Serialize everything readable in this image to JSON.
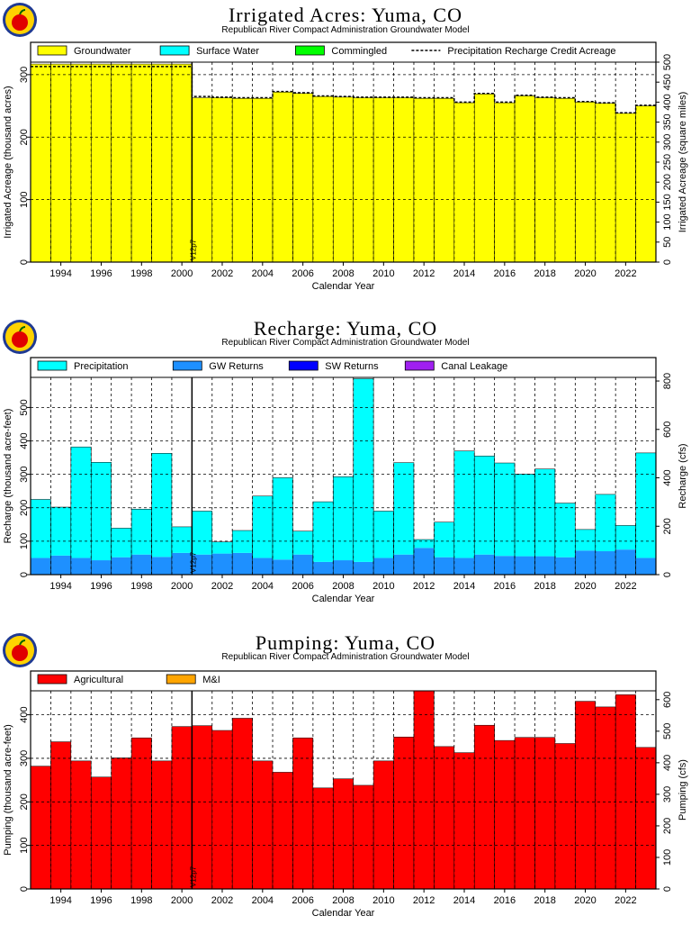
{
  "panels": [
    {
      "title": "Irrigated Acres: Yuma, CO",
      "subtitle": "Republican River Compact Administration Groundwater Model",
      "xlabel": "Calendar Year",
      "ylabel": "Irrigated Acreage (thousand acres)",
      "y2label": "Irrigated Acreage (square miles)",
      "marker_label": "V12p7"
    },
    {
      "title": "Recharge: Yuma, CO",
      "subtitle": "Republican River Compact Administration Groundwater Model",
      "xlabel": "Calendar Year",
      "ylabel": "Recharge (thousand acre-feet)",
      "y2label": "Recharge (cfs)",
      "marker_label": "V12p7"
    },
    {
      "title": "Pumping: Yuma, CO",
      "subtitle": "Republican River Compact Administration Groundwater Model",
      "xlabel": "Calendar Year",
      "ylabel": "Pumping (thousand acre-feet)",
      "y2label": "Pumping (cfs)",
      "marker_label": "V12p7"
    }
  ],
  "chart_data": [
    {
      "type": "bar",
      "stacked": true,
      "title": "Irrigated Acres: Yuma, CO",
      "subtitle": "Republican River Compact Administration Groundwater Model",
      "xlabel": "Calendar Year",
      "ylabel": "Irrigated Acreage (thousand acres)",
      "y2label": "Irrigated Acreage (square miles)",
      "x_start": 1993,
      "x_end": 2023,
      "xticks": [
        1994,
        1996,
        1998,
        2000,
        2002,
        2004,
        2006,
        2008,
        2010,
        2012,
        2014,
        2016,
        2018,
        2020,
        2022
      ],
      "ylim": [
        0,
        320
      ],
      "yticks": [
        0,
        100,
        200,
        300
      ],
      "y2lim": [
        0,
        500
      ],
      "y2ticks": [
        0,
        50,
        100,
        150,
        200,
        250,
        300,
        350,
        400,
        450,
        500
      ],
      "vline_year": 2000.5,
      "vline_label": "V12p7",
      "legend": [
        {
          "name": "Groundwater",
          "color": "#ffff00",
          "style": "box"
        },
        {
          "name": "Surface Water",
          "color": "#00ffff",
          "style": "box"
        },
        {
          "name": "Commingled",
          "color": "#00ff00",
          "style": "box"
        },
        {
          "name": "Precipitation Recharge Credit Acreage",
          "color": "#000000",
          "style": "dash"
        }
      ],
      "categories": [
        1993,
        1994,
        1995,
        1996,
        1997,
        1998,
        1999,
        2000,
        2001,
        2002,
        2003,
        2004,
        2005,
        2006,
        2007,
        2008,
        2009,
        2010,
        2011,
        2012,
        2013,
        2014,
        2015,
        2016,
        2017,
        2018,
        2019,
        2020,
        2021,
        2022,
        2023
      ],
      "series": [
        {
          "name": "Groundwater",
          "color": "#ffff00",
          "values": [
            317,
            317,
            317,
            317,
            317,
            317,
            317,
            317,
            263,
            263,
            262,
            262,
            272,
            270,
            265,
            264,
            263,
            263,
            263,
            262,
            262,
            255,
            269,
            255,
            266,
            263,
            262,
            256,
            254,
            238,
            250
          ]
        },
        {
          "name": "Surface Water",
          "color": "#00ffff",
          "values": [
            0,
            0,
            0,
            0,
            0,
            0,
            0,
            0,
            0,
            0,
            0,
            0,
            0,
            0,
            0,
            0,
            0,
            0,
            0,
            0,
            0,
            0,
            0,
            0,
            0,
            0,
            0,
            0,
            0,
            0,
            0
          ]
        },
        {
          "name": "Commingled",
          "color": "#00ff00",
          "values": [
            0,
            0,
            0,
            0,
            0,
            0,
            0,
            0,
            0,
            0,
            0,
            0,
            0,
            0,
            0,
            0,
            0,
            0,
            0,
            0,
            0,
            0,
            0,
            0,
            0,
            0,
            0,
            0,
            0,
            0,
            0
          ]
        }
      ],
      "line": {
        "name": "Precipitation Recharge Credit Acreage",
        "values": [
          313,
          313,
          313,
          313,
          313,
          313,
          313,
          313,
          265,
          264,
          263,
          263,
          273,
          271,
          266,
          265,
          264,
          264,
          264,
          263,
          263,
          256,
          270,
          256,
          267,
          264,
          263,
          257,
          255,
          239,
          251
        ]
      }
    },
    {
      "type": "bar",
      "stacked": true,
      "title": "Recharge: Yuma, CO",
      "subtitle": "Republican River Compact Administration Groundwater Model",
      "xlabel": "Calendar Year",
      "ylabel": "Recharge (thousand acre-feet)",
      "y2label": "Recharge (cfs)",
      "x_start": 1993,
      "x_end": 2023,
      "xticks": [
        1994,
        1996,
        1998,
        2000,
        2002,
        2004,
        2006,
        2008,
        2010,
        2012,
        2014,
        2016,
        2018,
        2020,
        2022
      ],
      "ylim": [
        0,
        590
      ],
      "yticks": [
        0,
        100,
        200,
        300,
        400,
        500
      ],
      "y2lim": [
        0,
        815
      ],
      "y2ticks": [
        0,
        200,
        400,
        600,
        800
      ],
      "vline_year": 2000.5,
      "vline_label": "V12p7",
      "legend": [
        {
          "name": "Precipitation",
          "color": "#00ffff",
          "style": "box"
        },
        {
          "name": "GW Returns",
          "color": "#1e90ff",
          "style": "box"
        },
        {
          "name": "SW Returns",
          "color": "#0000ff",
          "style": "box"
        },
        {
          "name": "Canal Leakage",
          "color": "#a020f0",
          "style": "box"
        }
      ],
      "categories": [
        1993,
        1994,
        1995,
        1996,
        1997,
        1998,
        1999,
        2000,
        2001,
        2002,
        2003,
        2004,
        2005,
        2006,
        2007,
        2008,
        2009,
        2010,
        2011,
        2012,
        2013,
        2014,
        2015,
        2016,
        2017,
        2018,
        2019,
        2020,
        2021,
        2022,
        2023
      ],
      "series": [
        {
          "name": "GW Returns",
          "color": "#1e90ff",
          "values": [
            50,
            57,
            50,
            43,
            52,
            60,
            53,
            65,
            60,
            63,
            65,
            50,
            45,
            60,
            38,
            43,
            38,
            50,
            60,
            80,
            52,
            50,
            60,
            56,
            55,
            55,
            52,
            72,
            70,
            75,
            50
          ]
        },
        {
          "name": "Precipitation",
          "color": "#00ffff",
          "values": [
            175,
            145,
            332,
            293,
            87,
            136,
            310,
            78,
            130,
            35,
            67,
            185,
            245,
            70,
            180,
            250,
            548,
            140,
            275,
            25,
            105,
            320,
            295,
            278,
            246,
            261,
            162,
            63,
            170,
            72,
            314
          ]
        },
        {
          "name": "SW Returns",
          "color": "#0000ff",
          "values": [
            0,
            0,
            0,
            0,
            0,
            0,
            0,
            0,
            0,
            0,
            0,
            0,
            0,
            0,
            0,
            0,
            0,
            0,
            0,
            0,
            0,
            0,
            0,
            0,
            0,
            0,
            0,
            0,
            0,
            0,
            0
          ]
        },
        {
          "name": "Canal Leakage",
          "color": "#a020f0",
          "values": [
            0,
            0,
            0,
            0,
            0,
            0,
            0,
            0,
            0,
            0,
            0,
            0,
            0,
            0,
            0,
            0,
            0,
            0,
            0,
            0,
            0,
            0,
            0,
            0,
            0,
            0,
            0,
            0,
            0,
            0,
            0
          ]
        }
      ]
    },
    {
      "type": "bar",
      "stacked": true,
      "title": "Pumping: Yuma, CO",
      "subtitle": "Republican River Compact Administration Groundwater Model",
      "xlabel": "Calendar Year",
      "ylabel": "Pumping (thousand acre-feet)",
      "y2label": "Pumping (cfs)",
      "x_start": 1993,
      "x_end": 2023,
      "xticks": [
        1994,
        1996,
        1998,
        2000,
        2002,
        2004,
        2006,
        2008,
        2010,
        2012,
        2014,
        2016,
        2018,
        2020,
        2022
      ],
      "ylim": [
        0,
        455
      ],
      "yticks": [
        0,
        100,
        200,
        300,
        400
      ],
      "y2lim": [
        0,
        628
      ],
      "y2ticks": [
        0,
        100,
        200,
        300,
        400,
        500,
        600
      ],
      "vline_year": 2000.5,
      "vline_label": "V12p7",
      "legend": [
        {
          "name": "Agricultural",
          "color": "#ff0000",
          "style": "box"
        },
        {
          "name": "M&I",
          "color": "#ffa500",
          "style": "box"
        }
      ],
      "categories": [
        1993,
        1994,
        1995,
        1996,
        1997,
        1998,
        1999,
        2000,
        2001,
        2002,
        2003,
        2004,
        2005,
        2006,
        2007,
        2008,
        2009,
        2010,
        2011,
        2012,
        2013,
        2014,
        2015,
        2016,
        2017,
        2018,
        2019,
        2020,
        2021,
        2022,
        2023
      ],
      "series": [
        {
          "name": "Agricultural",
          "color": "#ff0000",
          "values": [
            282,
            338,
            294,
            257,
            301,
            347,
            294,
            373,
            375,
            364,
            392,
            294,
            268,
            347,
            232,
            253,
            238,
            294,
            349,
            455,
            327,
            313,
            376,
            341,
            348,
            348,
            334,
            431,
            418,
            446,
            325
          ]
        },
        {
          "name": "M&I",
          "color": "#ffa500",
          "values": [
            0,
            0,
            0,
            0,
            0,
            0,
            0,
            0,
            0,
            0,
            0,
            0,
            0,
            0,
            0,
            0,
            0,
            0,
            0,
            0,
            0,
            0,
            0,
            0,
            0,
            0,
            0,
            0,
            0,
            0,
            0
          ]
        }
      ]
    }
  ]
}
